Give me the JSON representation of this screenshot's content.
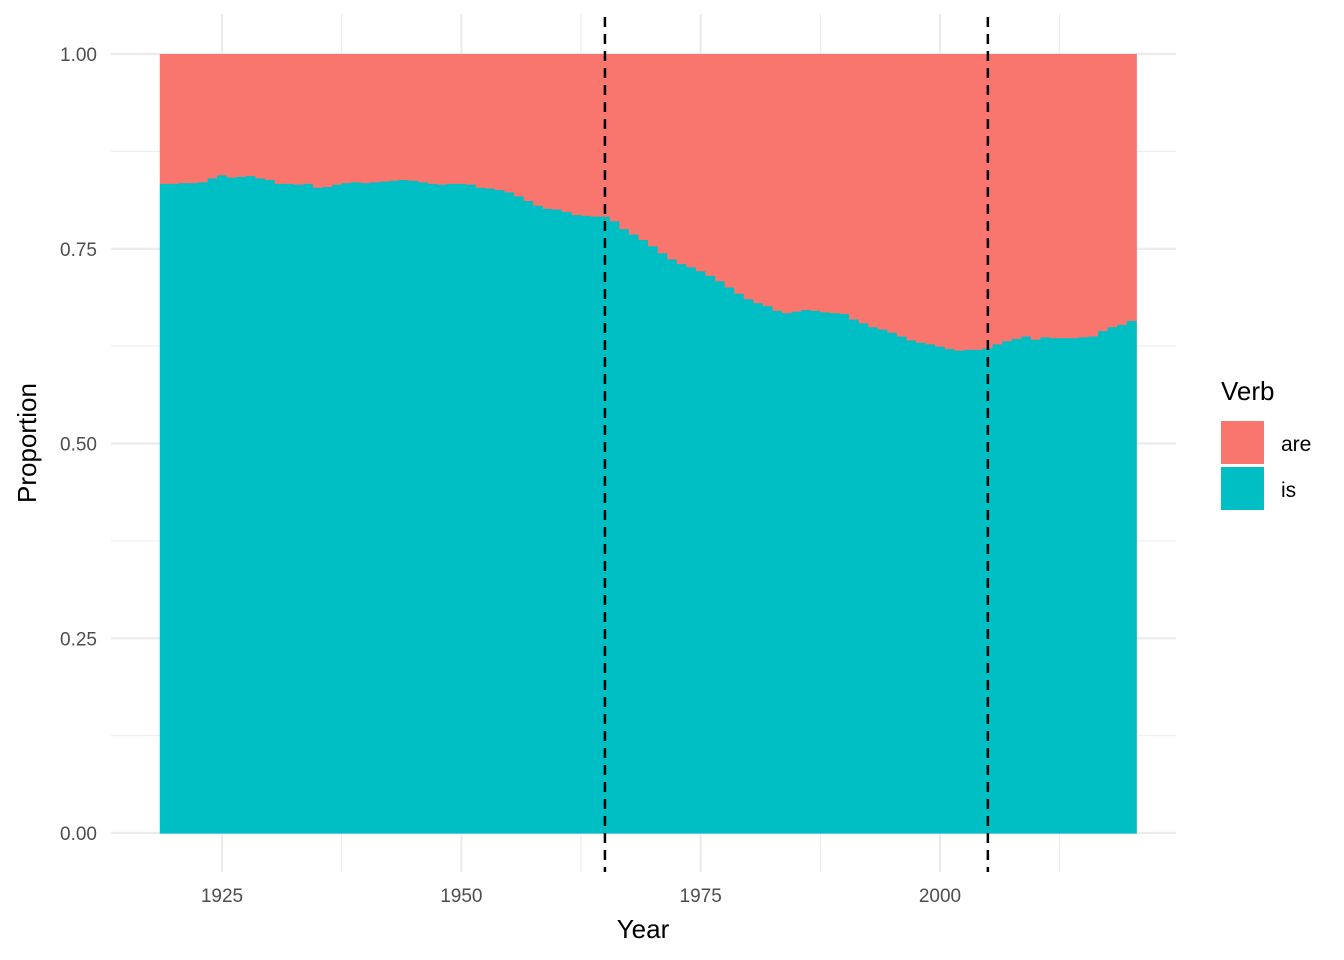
{
  "chart_data": {
    "type": "area",
    "title": "",
    "xlabel": "Year",
    "ylabel": "Proportion",
    "xlim": [
      1918.5,
      2020.5
    ],
    "ylim": [
      0,
      1
    ],
    "x_ticks": [
      1925,
      1950,
      1975,
      2000
    ],
    "y_ticks": [
      0,
      0.25,
      0.5,
      0.75,
      1
    ],
    "y_tick_labels": [
      "0.00",
      "0.25",
      "0.50",
      "0.75",
      "1.00"
    ],
    "grid": true,
    "legend": {
      "title": "Verb",
      "position": "right"
    },
    "reference_lines": [
      1965,
      2005
    ],
    "reference_line_style": "dashed",
    "x": [
      1919,
      1920,
      1921,
      1922,
      1923,
      1924,
      1925,
      1926,
      1927,
      1928,
      1929,
      1930,
      1931,
      1932,
      1933,
      1934,
      1935,
      1936,
      1937,
      1938,
      1939,
      1940,
      1941,
      1942,
      1943,
      1944,
      1945,
      1946,
      1947,
      1948,
      1949,
      1950,
      1951,
      1952,
      1953,
      1954,
      1955,
      1956,
      1957,
      1958,
      1959,
      1960,
      1961,
      1962,
      1963,
      1964,
      1965,
      1966,
      1967,
      1968,
      1969,
      1970,
      1971,
      1972,
      1973,
      1974,
      1975,
      1976,
      1977,
      1978,
      1979,
      1980,
      1981,
      1982,
      1983,
      1984,
      1985,
      1986,
      1987,
      1988,
      1989,
      1990,
      1991,
      1992,
      1993,
      1994,
      1995,
      1996,
      1997,
      1998,
      1999,
      2000,
      2001,
      2002,
      2003,
      2004,
      2005,
      2006,
      2007,
      2008,
      2009,
      2010,
      2011,
      2012,
      2013,
      2014,
      2015,
      2016,
      2017,
      2018,
      2019,
      2020
    ],
    "series": [
      {
        "name": "is",
        "color": "#00BFC4",
        "values": [
          0.834,
          0.834,
          0.835,
          0.835,
          0.836,
          0.841,
          0.845,
          0.842,
          0.843,
          0.844,
          0.841,
          0.839,
          0.834,
          0.834,
          0.833,
          0.834,
          0.829,
          0.83,
          0.833,
          0.835,
          0.836,
          0.835,
          0.836,
          0.837,
          0.838,
          0.839,
          0.838,
          0.836,
          0.834,
          0.833,
          0.834,
          0.834,
          0.833,
          0.829,
          0.828,
          0.826,
          0.823,
          0.818,
          0.812,
          0.806,
          0.802,
          0.801,
          0.798,
          0.794,
          0.793,
          0.792,
          0.792,
          0.786,
          0.776,
          0.769,
          0.762,
          0.754,
          0.745,
          0.737,
          0.731,
          0.727,
          0.722,
          0.716,
          0.709,
          0.701,
          0.693,
          0.686,
          0.681,
          0.677,
          0.671,
          0.668,
          0.67,
          0.672,
          0.671,
          0.669,
          0.668,
          0.667,
          0.66,
          0.655,
          0.65,
          0.647,
          0.643,
          0.638,
          0.633,
          0.63,
          0.628,
          0.625,
          0.622,
          0.62,
          0.621,
          0.621,
          0.623,
          0.628,
          0.632,
          0.635,
          0.638,
          0.634,
          0.637,
          0.636,
          0.636,
          0.636,
          0.637,
          0.638,
          0.645,
          0.65,
          0.653,
          0.658
        ]
      },
      {
        "name": "are",
        "color": "#F8766D",
        "values": [
          0.166,
          0.166,
          0.165,
          0.165,
          0.164,
          0.159,
          0.155,
          0.158,
          0.157,
          0.156,
          0.159,
          0.161,
          0.166,
          0.166,
          0.167,
          0.166,
          0.171,
          0.17,
          0.167,
          0.165,
          0.164,
          0.165,
          0.164,
          0.163,
          0.162,
          0.161,
          0.162,
          0.164,
          0.166,
          0.167,
          0.166,
          0.166,
          0.167,
          0.171,
          0.172,
          0.174,
          0.177,
          0.182,
          0.188,
          0.194,
          0.198,
          0.199,
          0.202,
          0.206,
          0.207,
          0.208,
          0.208,
          0.214,
          0.224,
          0.231,
          0.238,
          0.246,
          0.255,
          0.263,
          0.269,
          0.273,
          0.278,
          0.284,
          0.291,
          0.299,
          0.307,
          0.314,
          0.319,
          0.323,
          0.329,
          0.332,
          0.33,
          0.328,
          0.329,
          0.331,
          0.332,
          0.333,
          0.34,
          0.345,
          0.35,
          0.353,
          0.357,
          0.362,
          0.367,
          0.37,
          0.372,
          0.375,
          0.378,
          0.38,
          0.379,
          0.379,
          0.377,
          0.372,
          0.368,
          0.365,
          0.362,
          0.366,
          0.363,
          0.364,
          0.364,
          0.364,
          0.363,
          0.362,
          0.355,
          0.35,
          0.347,
          0.342
        ]
      }
    ]
  }
}
